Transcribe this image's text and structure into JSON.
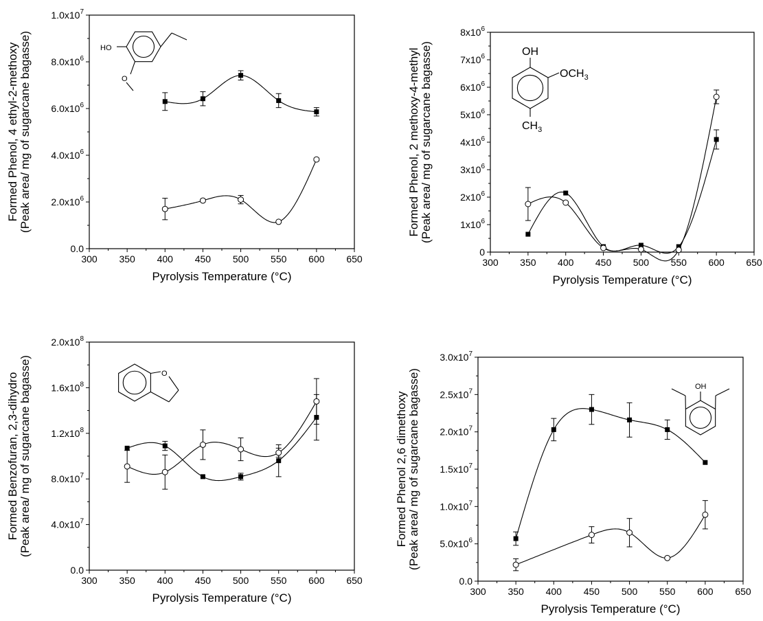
{
  "chart_data": [
    {
      "type": "scatter",
      "xlabel": "Pyrolysis Temperature (°C)",
      "ylabel": [
        "Formed Phenol, 4 ethyl-2-methoxy",
        "(Peak area/ mg of sugarcane bagasse)"
      ],
      "xlim": [
        300,
        650
      ],
      "ylim": [
        0,
        10000000
      ],
      "x_ticks": [
        "300",
        "350",
        "400",
        "450",
        "500",
        "550",
        "600",
        "650"
      ],
      "y_ticks": [
        {
          "mant": "0.0",
          "exp": ""
        },
        {
          "mant": "2.0x10",
          "exp": "6"
        },
        {
          "mant": "4.0x10",
          "exp": "6"
        },
        {
          "mant": "6.0x10",
          "exp": "6"
        },
        {
          "mant": "8.0x10",
          "exp": "6"
        },
        {
          "mant": "1.0x10",
          "exp": "7"
        }
      ],
      "y_tick_values": [
        0,
        2000000,
        4000000,
        6000000,
        8000000,
        10000000
      ],
      "series": [
        {
          "marker": "filled-square",
          "x": [
            400,
            450,
            500,
            550,
            600
          ],
          "y": [
            6300000,
            6420000,
            7420000,
            6340000,
            5860000
          ],
          "err": [
            380000,
            300000,
            200000,
            300000,
            180000
          ]
        },
        {
          "marker": "open-circle",
          "x": [
            400,
            450,
            500,
            550,
            600
          ],
          "y": [
            1700000,
            2060000,
            2100000,
            1150000,
            3820000
          ],
          "err": [
            460000,
            60000,
            180000,
            0,
            60000
          ]
        }
      ],
      "molecule": {
        "labels": [
          "HO",
          "O"
        ]
      }
    },
    {
      "type": "scatter",
      "xlabel": "Pyrolysis Temperature (°C)",
      "ylabel": [
        "Formed Phenol, 2 methoxy-4-methyl",
        "(Peak area/ mg of sugarcane bagasse)"
      ],
      "xlim": [
        300,
        650
      ],
      "ylim": [
        0,
        8000000
      ],
      "x_ticks": [
        "300",
        "350",
        "400",
        "450",
        "500",
        "550",
        "600",
        "650"
      ],
      "y_ticks": [
        {
          "mant": "0",
          "exp": ""
        },
        {
          "mant": "1x10",
          "exp": "6"
        },
        {
          "mant": "2x10",
          "exp": "6"
        },
        {
          "mant": "3x10",
          "exp": "6"
        },
        {
          "mant": "4x10",
          "exp": "6"
        },
        {
          "mant": "5x10",
          "exp": "6"
        },
        {
          "mant": "6x10",
          "exp": "6"
        },
        {
          "mant": "7x10",
          "exp": "6"
        },
        {
          "mant": "8x10",
          "exp": "6"
        }
      ],
      "y_tick_values": [
        0,
        1000000,
        2000000,
        3000000,
        4000000,
        5000000,
        6000000,
        7000000,
        8000000
      ],
      "series": [
        {
          "marker": "filled-square",
          "x": [
            350,
            400,
            450,
            500,
            550,
            600
          ],
          "y": [
            650000,
            2150000,
            200000,
            250000,
            200000,
            4100000
          ],
          "err": [
            0,
            0,
            0,
            0,
            0,
            350000
          ]
        },
        {
          "marker": "open-circle",
          "x": [
            350,
            400,
            450,
            500,
            550,
            600
          ],
          "y": [
            1750000,
            1800000,
            150000,
            100000,
            80000,
            5650000
          ],
          "err": [
            600000,
            0,
            0,
            0,
            0,
            250000
          ]
        }
      ],
      "molecule": {
        "labels": [
          "OH",
          "OCH",
          "3",
          "CH",
          "3"
        ]
      }
    },
    {
      "type": "scatter",
      "xlabel": "Pyrolysis Temperature (°C)",
      "ylabel": [
        "Formed Benzofuran, 2,3-dihydro",
        "(Peak area/ mg of sugarcane bagasse)"
      ],
      "xlim": [
        300,
        650
      ],
      "ylim": [
        0,
        200000000
      ],
      "x_ticks": [
        "300",
        "350",
        "400",
        "450",
        "500",
        "550",
        "600",
        "650"
      ],
      "y_ticks": [
        {
          "mant": "0.0",
          "exp": ""
        },
        {
          "mant": "4.0x10",
          "exp": "7"
        },
        {
          "mant": "8.0x10",
          "exp": "7"
        },
        {
          "mant": "1.2x10",
          "exp": "8"
        },
        {
          "mant": "1.6x10",
          "exp": "8"
        },
        {
          "mant": "2.0x10",
          "exp": "8"
        }
      ],
      "y_tick_values": [
        0,
        40000000,
        80000000,
        120000000,
        160000000,
        200000000
      ],
      "series": [
        {
          "marker": "filled-square",
          "x": [
            350,
            400,
            450,
            500,
            550,
            600
          ],
          "y": [
            107000000,
            109000000,
            82000000,
            82000000,
            96000000,
            134000000
          ],
          "err": [
            0,
            4000000,
            0,
            3000000,
            14000000,
            20000000
          ]
        },
        {
          "marker": "open-circle",
          "x": [
            350,
            400,
            450,
            500,
            550,
            600
          ],
          "y": [
            91000000,
            86000000,
            110000000,
            106000000,
            103000000,
            148000000
          ],
          "err": [
            14000000,
            15000000,
            13000000,
            10000000,
            4000000,
            20000000
          ]
        }
      ],
      "molecule": {
        "labels": [
          "O"
        ]
      }
    },
    {
      "type": "scatter",
      "xlabel": "Pyrolysis Temperature (°C)",
      "ylabel": [
        "Formed Phenol 2,6 dimethoxy",
        "(Peak area/ mg of sugarcane bagasse)"
      ],
      "xlim": [
        300,
        650
      ],
      "ylim": [
        0,
        30000000
      ],
      "x_ticks": [
        "300",
        "350",
        "400",
        "450",
        "500",
        "550",
        "600",
        "650"
      ],
      "y_ticks": [
        {
          "mant": "0.0",
          "exp": ""
        },
        {
          "mant": "5.0x10",
          "exp": "6"
        },
        {
          "mant": "1.0x10",
          "exp": "7"
        },
        {
          "mant": "1.5x10",
          "exp": "7"
        },
        {
          "mant": "2.0x10",
          "exp": "7"
        },
        {
          "mant": "2.5x10",
          "exp": "7"
        },
        {
          "mant": "3.0x10",
          "exp": "7"
        }
      ],
      "y_tick_values": [
        0,
        5000000,
        10000000,
        15000000,
        20000000,
        25000000,
        30000000
      ],
      "series": [
        {
          "marker": "filled-square",
          "x": [
            350,
            400,
            450,
            500,
            550,
            600
          ],
          "y": [
            5700000,
            20300000,
            23000000,
            21600000,
            20300000,
            15900000
          ],
          "err": [
            900000,
            1500000,
            2000000,
            2300000,
            1300000,
            0
          ]
        },
        {
          "marker": "open-circle",
          "x": [
            350,
            400,
            450,
            500,
            550,
            600
          ],
          "y": [
            2200000,
            null,
            6200000,
            6500000,
            3100000,
            8900000
          ],
          "err": [
            800000,
            0,
            1100000,
            1900000,
            0,
            1900000
          ]
        }
      ],
      "molecule": {
        "labels": [
          "OH"
        ]
      }
    }
  ]
}
